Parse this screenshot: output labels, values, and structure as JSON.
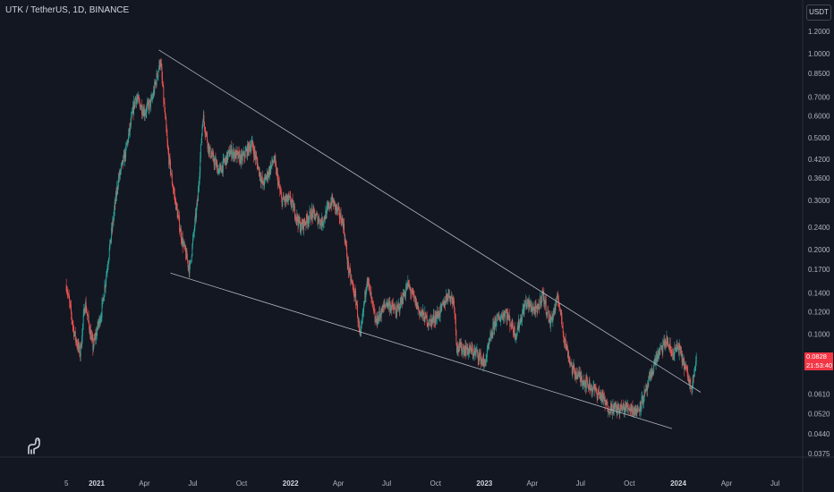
{
  "header": {
    "title": "UTK / TetherUS, 1D, BINANCE"
  },
  "currency_button": {
    "label": "USDT"
  },
  "current_price": {
    "value": "0.0828",
    "countdown": "21:53:40"
  },
  "colors": {
    "up": "#26a69a",
    "down": "#ef5350",
    "background": "#131722",
    "trendline": "#b2b5be",
    "price_badge": "#f23645"
  },
  "logo": {
    "icon": "tradingview-dino-icon"
  },
  "chart_data": {
    "type": "candlestick",
    "yscale": "log",
    "y_tick_labels": [
      "1.2000",
      "1.0000",
      "0.8500",
      "0.7000",
      "0.6000",
      "0.5000",
      "0.4200",
      "0.3600",
      "0.3000",
      "0.2400",
      "0.2000",
      "0.1700",
      "0.1400",
      "0.1200",
      "0.1000",
      "0.0790",
      "0.0610",
      "0.0520",
      "0.0440",
      "0.0375"
    ],
    "x_tick_labels": [
      "5",
      "2021",
      "Apr",
      "Jul",
      "Oct",
      "2022",
      "Apr",
      "Jul",
      "Oct",
      "2023",
      "Apr",
      "Jul",
      "Oct",
      "2024",
      "Apr",
      "Jul"
    ],
    "x_tick_bold": [
      "2021",
      "2022",
      "2023",
      "2024"
    ],
    "price_path": [
      [
        "2020-11-05",
        0.15
      ],
      [
        "2020-11-20",
        0.1
      ],
      [
        "2020-12-01",
        0.085
      ],
      [
        "2020-12-10",
        0.13
      ],
      [
        "2020-12-25",
        0.09
      ],
      [
        "2021-01-10",
        0.12
      ],
      [
        "2021-01-25",
        0.2
      ],
      [
        "2021-02-10",
        0.35
      ],
      [
        "2021-02-25",
        0.45
      ],
      [
        "2021-03-15",
        0.7
      ],
      [
        "2021-04-01",
        0.62
      ],
      [
        "2021-04-15",
        0.68
      ],
      [
        "2021-05-01",
        0.95
      ],
      [
        "2021-05-15",
        0.45
      ],
      [
        "2021-05-25",
        0.33
      ],
      [
        "2021-06-10",
        0.22
      ],
      [
        "2021-06-25",
        0.17
      ],
      [
        "2021-07-10",
        0.3
      ],
      [
        "2021-07-20",
        0.6
      ],
      [
        "2021-08-01",
        0.45
      ],
      [
        "2021-08-20",
        0.38
      ],
      [
        "2021-09-10",
        0.45
      ],
      [
        "2021-10-01",
        0.42
      ],
      [
        "2021-10-20",
        0.48
      ],
      [
        "2021-11-10",
        0.34
      ],
      [
        "2021-12-01",
        0.42
      ],
      [
        "2021-12-15",
        0.3
      ],
      [
        "2022-01-01",
        0.3
      ],
      [
        "2022-01-20",
        0.24
      ],
      [
        "2022-02-10",
        0.27
      ],
      [
        "2022-03-01",
        0.25
      ],
      [
        "2022-03-20",
        0.3
      ],
      [
        "2022-04-10",
        0.25
      ],
      [
        "2022-04-20",
        0.17
      ],
      [
        "2022-05-05",
        0.13
      ],
      [
        "2022-05-12",
        0.095
      ],
      [
        "2022-05-25",
        0.16
      ],
      [
        "2022-06-10",
        0.11
      ],
      [
        "2022-07-01",
        0.13
      ],
      [
        "2022-07-20",
        0.12
      ],
      [
        "2022-08-10",
        0.15
      ],
      [
        "2022-09-01",
        0.12
      ],
      [
        "2022-09-20",
        0.11
      ],
      [
        "2022-10-10",
        0.12
      ],
      [
        "2022-10-25",
        0.14
      ],
      [
        "2022-11-05",
        0.13
      ],
      [
        "2022-11-10",
        0.09
      ],
      [
        "2022-12-01",
        0.088
      ],
      [
        "2022-12-20",
        0.085
      ],
      [
        "2023-01-01",
        0.078
      ],
      [
        "2023-01-20",
        0.11
      ],
      [
        "2023-02-10",
        0.12
      ],
      [
        "2023-03-01",
        0.1
      ],
      [
        "2023-03-20",
        0.13
      ],
      [
        "2023-04-10",
        0.12
      ],
      [
        "2023-04-20",
        0.14
      ],
      [
        "2023-05-05",
        0.11
      ],
      [
        "2023-05-20",
        0.135
      ],
      [
        "2023-06-01",
        0.095
      ],
      [
        "2023-06-15",
        0.075
      ],
      [
        "2023-07-01",
        0.07
      ],
      [
        "2023-07-20",
        0.065
      ],
      [
        "2023-08-10",
        0.06
      ],
      [
        "2023-08-20",
        0.055
      ],
      [
        "2023-09-10",
        0.054
      ],
      [
        "2023-10-01",
        0.055
      ],
      [
        "2023-10-15",
        0.053
      ],
      [
        "2023-11-01",
        0.062
      ],
      [
        "2023-11-20",
        0.082
      ],
      [
        "2023-12-10",
        0.095
      ],
      [
        "2023-12-20",
        0.085
      ],
      [
        "2024-01-01",
        0.09
      ],
      [
        "2024-01-15",
        0.075
      ],
      [
        "2024-01-25",
        0.065
      ],
      [
        "2024-02-05",
        0.082
      ]
    ],
    "trendlines": [
      {
        "name": "upper",
        "from": [
          "2021-04-28",
          1.03
        ],
        "to": [
          "2024-02-12",
          0.062
        ]
      },
      {
        "name": "lower",
        "from": [
          "2021-05-20",
          0.165
        ],
        "to": [
          "2023-12-20",
          0.046
        ]
      }
    ]
  }
}
